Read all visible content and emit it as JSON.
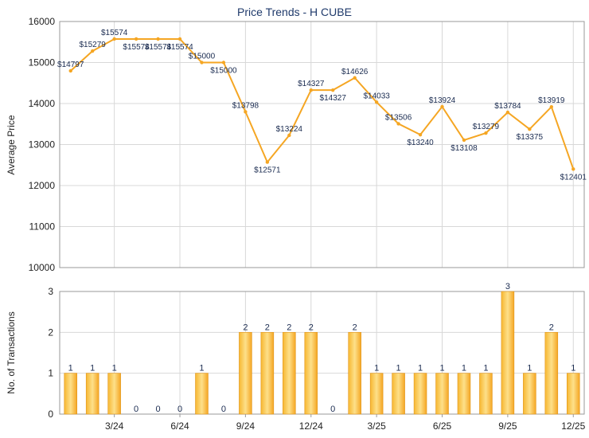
{
  "chart_data": [
    {
      "type": "line",
      "title": "Price Trends - H CUBE",
      "ylabel": "Average Price",
      "ylim": [
        10000,
        16000
      ],
      "yticks": [
        10000,
        11000,
        12000,
        13000,
        14000,
        15000,
        16000
      ],
      "series_color": "#f5a623",
      "grid": true,
      "points": [
        {
          "label": "$14797",
          "value": 14797
        },
        {
          "label": "$15279",
          "value": 15279
        },
        {
          "label": "$15574",
          "value": 15574
        },
        {
          "label": "$15574",
          "value": 15574
        },
        {
          "label": "$15574",
          "value": 15574
        },
        {
          "label": "$15574",
          "value": 15574
        },
        {
          "label": "$15000",
          "value": 15000
        },
        {
          "label": "$15000",
          "value": 15000
        },
        {
          "label": "$13798",
          "value": 13798
        },
        {
          "label": "$12571",
          "value": 12571
        },
        {
          "label": "$13224",
          "value": 13224
        },
        {
          "label": "$14327",
          "value": 14327
        },
        {
          "label": "$14327",
          "value": 14327
        },
        {
          "label": "$14626",
          "value": 14626
        },
        {
          "label": "$14033",
          "value": 14033
        },
        {
          "label": "$13506",
          "value": 13506
        },
        {
          "label": "$13240",
          "value": 13240
        },
        {
          "label": "$13924",
          "value": 13924
        },
        {
          "label": "$13108",
          "value": 13108
        },
        {
          "label": "$13279",
          "value": 13279
        },
        {
          "label": "$13784",
          "value": 13784
        },
        {
          "label": "$13375",
          "value": 13375
        },
        {
          "label": "$13919",
          "value": 13919
        },
        {
          "label": "$12401",
          "value": 12401
        }
      ]
    },
    {
      "type": "bar",
      "ylabel": "No. of Transactions",
      "ylim": [
        0,
        3
      ],
      "yticks": [
        0,
        1,
        2,
        3
      ],
      "bar_color": "#f5a623",
      "grid": true,
      "values": [
        1,
        1,
        1,
        0,
        0,
        0,
        1,
        0,
        2,
        2,
        2,
        2,
        0,
        2,
        1,
        1,
        1,
        1,
        1,
        1,
        3,
        1,
        2,
        1
      ],
      "xticks": [
        {
          "index": 2,
          "label": "3/24"
        },
        {
          "index": 5,
          "label": "6/24"
        },
        {
          "index": 8,
          "label": "9/24"
        },
        {
          "index": 11,
          "label": "12/24"
        },
        {
          "index": 14,
          "label": "3/25"
        },
        {
          "index": 17,
          "label": "6/25"
        },
        {
          "index": 20,
          "label": "9/25"
        },
        {
          "index": 23,
          "label": "12/25"
        }
      ]
    }
  ]
}
